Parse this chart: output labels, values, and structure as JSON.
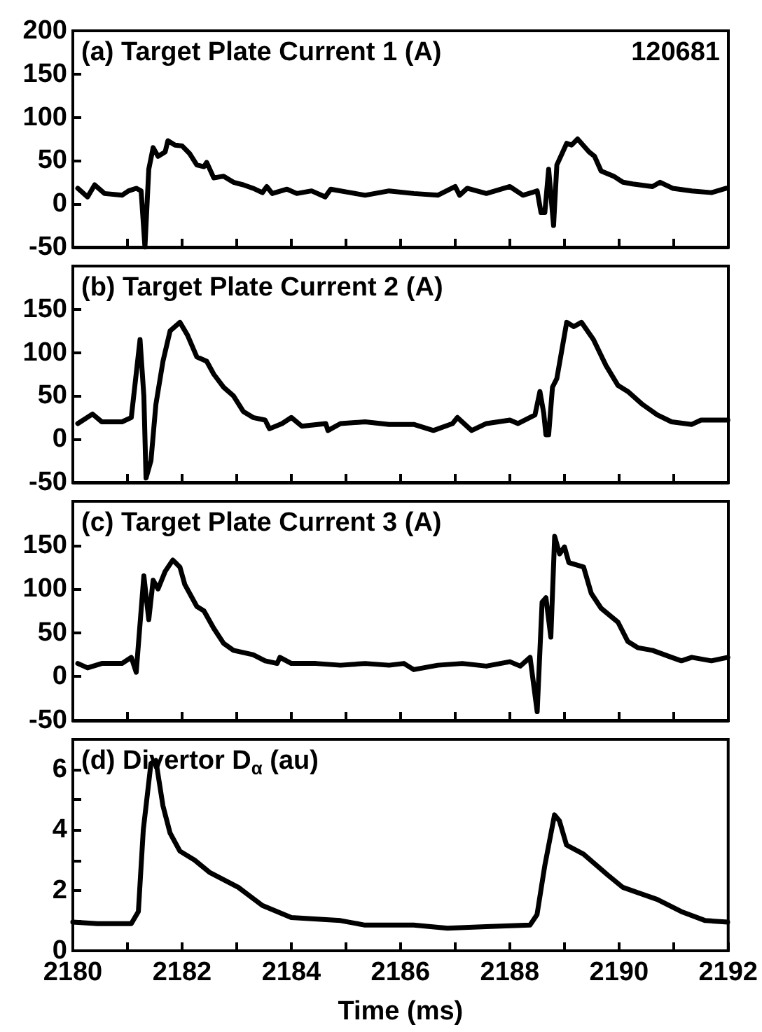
{
  "chart_data": [
    {
      "type": "line",
      "title": "(a) Target Plate Current 1 (A)",
      "annotations": [
        "120681"
      ],
      "xlim": [
        2180,
        2192
      ],
      "xticks": [
        2180,
        {
          "value": 2181,
          "label": null
        },
        2182,
        {
          "value": 2183,
          "label": null
        },
        2184,
        {
          "value": 2185,
          "label": null
        },
        2186,
        {
          "value": 2187,
          "label": null
        },
        2188,
        {
          "value": 2189,
          "label": null
        },
        2190,
        {
          "value": 2191,
          "label": null
        },
        2192
      ],
      "ylim": [
        -50,
        200
      ],
      "yticks": [
        -50,
        0,
        50,
        100,
        150,
        200
      ],
      "tick_labels": "y",
      "grid": false,
      "series": [
        {
          "color": "#000000",
          "x": [
            2180.09,
            2180.27,
            2180.4,
            2180.58,
            2180.9,
            2181.02,
            2181.16,
            2181.25,
            2181.32,
            2181.39,
            2181.47,
            2181.56,
            2181.69,
            2181.74,
            2181.87,
            2182.0,
            2182.14,
            2182.27,
            2182.4,
            2182.45,
            2182.58,
            2182.76,
            2182.94,
            2183.12,
            2183.3,
            2183.47,
            2183.55,
            2183.65,
            2183.92,
            2184.1,
            2184.37,
            2184.62,
            2184.72,
            2185.08,
            2185.35,
            2185.79,
            2186.24,
            2186.68,
            2187.0,
            2187.08,
            2187.22,
            2187.57,
            2188.0,
            2188.24,
            2188.5,
            2188.57,
            2188.64,
            2188.71,
            2188.8,
            2188.86,
            2189.04,
            2189.13,
            2189.24,
            2189.45,
            2189.55,
            2189.67,
            2189.9,
            2190.07,
            2190.25,
            2190.61,
            2190.75,
            2190.98,
            2191.33,
            2191.69,
            2191.96
          ],
          "values": [
            18,
            8,
            22,
            12,
            10,
            15,
            18,
            15,
            -50,
            40,
            65,
            55,
            60,
            73,
            68,
            67,
            58,
            45,
            43,
            48,
            30,
            32,
            25,
            22,
            18,
            13,
            20,
            12,
            17,
            12,
            15,
            8,
            17,
            13,
            10,
            15,
            12,
            10,
            20,
            10,
            18,
            12,
            20,
            10,
            15,
            -10,
            -10,
            40,
            -25,
            45,
            70,
            68,
            75,
            60,
            55,
            38,
            32,
            25,
            23,
            20,
            25,
            18,
            15,
            13,
            18
          ]
        }
      ]
    },
    {
      "type": "line",
      "title": "(b) Target Plate Current 2 (A)",
      "xlim": [
        2180,
        2192
      ],
      "xticks": [
        2180,
        {
          "value": 2181,
          "label": null
        },
        2182,
        {
          "value": 2183,
          "label": null
        },
        2184,
        {
          "value": 2185,
          "label": null
        },
        2186,
        {
          "value": 2187,
          "label": null
        },
        2188,
        {
          "value": 2189,
          "label": null
        },
        2190,
        {
          "value": 2191,
          "label": null
        },
        2192
      ],
      "ylim": [
        -50,
        200
      ],
      "yticks": [
        -50,
        0,
        50,
        100,
        150,
        {
          "value": 200,
          "label": null
        }
      ],
      "tick_labels": "y",
      "grid": false,
      "series": [
        {
          "color": "#000000",
          "x": [
            2180.09,
            2180.36,
            2180.53,
            2180.9,
            2181.07,
            2181.23,
            2181.3,
            2181.34,
            2181.43,
            2181.52,
            2181.65,
            2181.78,
            2181.96,
            2182.1,
            2182.27,
            2182.45,
            2182.58,
            2182.76,
            2182.94,
            2183.12,
            2183.3,
            2183.52,
            2183.6,
            2183.83,
            2184.0,
            2184.19,
            2184.63,
            2184.67,
            2184.9,
            2185.35,
            2185.79,
            2186.24,
            2186.6,
            2186.95,
            2187.04,
            2187.3,
            2187.57,
            2188.0,
            2188.15,
            2188.46,
            2188.55,
            2188.62,
            2188.66,
            2188.71,
            2188.78,
            2188.86,
            2189.04,
            2189.17,
            2189.31,
            2189.53,
            2189.76,
            2189.98,
            2190.16,
            2190.43,
            2190.7,
            2190.96,
            2191.33,
            2191.5,
            2191.99
          ],
          "values": [
            18,
            29,
            20,
            20,
            25,
            115,
            50,
            -45,
            -25,
            40,
            90,
            125,
            135,
            120,
            95,
            90,
            75,
            60,
            50,
            32,
            25,
            22,
            12,
            18,
            25,
            15,
            18,
            10,
            18,
            20,
            17,
            17,
            10,
            18,
            25,
            10,
            18,
            22,
            18,
            28,
            55,
            30,
            5,
            5,
            60,
            70,
            135,
            130,
            135,
            115,
            85,
            62,
            55,
            40,
            28,
            20,
            17,
            22,
            22
          ]
        }
      ]
    },
    {
      "type": "line",
      "title": "(c) Target Plate Current 3 (A)",
      "xlim": [
        2180,
        2192
      ],
      "xticks": [
        2180,
        {
          "value": 2181,
          "label": null
        },
        2182,
        {
          "value": 2183,
          "label": null
        },
        2184,
        {
          "value": 2185,
          "label": null
        },
        2186,
        {
          "value": 2187,
          "label": null
        },
        2188,
        {
          "value": 2189,
          "label": null
        },
        2190,
        {
          "value": 2191,
          "label": null
        },
        2192
      ],
      "ylim": [
        -50,
        200
      ],
      "yticks": [
        -50,
        0,
        50,
        100,
        150,
        {
          "value": 200,
          "label": null
        }
      ],
      "tick_labels": "y",
      "grid": false,
      "series": [
        {
          "color": "#000000",
          "x": [
            2180.09,
            2180.27,
            2180.53,
            2180.9,
            2181.07,
            2181.16,
            2181.3,
            2181.39,
            2181.47,
            2181.56,
            2181.69,
            2181.83,
            2181.96,
            2182.05,
            2182.27,
            2182.4,
            2182.58,
            2182.76,
            2182.94,
            2183.3,
            2183.52,
            2183.74,
            2183.79,
            2184.0,
            2184.45,
            2184.9,
            2185.35,
            2185.79,
            2186.06,
            2186.24,
            2186.68,
            2187.13,
            2187.57,
            2188.0,
            2188.19,
            2188.37,
            2188.5,
            2188.59,
            2188.66,
            2188.75,
            2188.82,
            2188.91,
            2189.0,
            2189.08,
            2189.35,
            2189.49,
            2189.67,
            2189.98,
            2190.16,
            2190.34,
            2190.61,
            2190.96,
            2191.14,
            2191.33,
            2191.69,
            2191.99
          ],
          "values": [
            15,
            10,
            15,
            15,
            22,
            5,
            115,
            65,
            110,
            100,
            120,
            133,
            125,
            105,
            80,
            75,
            55,
            38,
            30,
            25,
            18,
            15,
            22,
            15,
            15,
            13,
            15,
            13,
            15,
            8,
            13,
            15,
            12,
            17,
            12,
            22,
            -40,
            85,
            90,
            45,
            160,
            140,
            148,
            130,
            125,
            95,
            78,
            62,
            40,
            33,
            30,
            22,
            18,
            22,
            18,
            22
          ]
        }
      ]
    },
    {
      "type": "line",
      "title": "(d) Divertor D$_{α}$ (au)",
      "xlabel": "Time (ms)",
      "xlim": [
        2180,
        2192
      ],
      "xticks": [
        2180,
        {
          "value": 2181,
          "label": null
        },
        2182,
        {
          "value": 2183,
          "label": null
        },
        2184,
        {
          "value": 2185,
          "label": null
        },
        2186,
        {
          "value": 2187,
          "label": null
        },
        2188,
        {
          "value": 2189,
          "label": null
        },
        2190,
        {
          "value": 2191,
          "label": null
        },
        2192
      ],
      "ylim": [
        0,
        7
      ],
      "yticks": [
        0,
        {
          "value": 1,
          "label": null
        },
        2,
        {
          "value": 3,
          "label": null
        },
        4,
        {
          "value": 5,
          "label": null
        },
        6,
        {
          "value": 7,
          "label": null
        }
      ],
      "grid": false,
      "series": [
        {
          "color": "#000000",
          "x": [
            2180.0,
            2180.45,
            2181.07,
            2181.2,
            2181.29,
            2181.43,
            2181.52,
            2181.65,
            2181.78,
            2181.96,
            2182.23,
            2182.5,
            2183.03,
            2183.47,
            2184.0,
            2184.9,
            2185.35,
            2186.24,
            2186.86,
            2187.57,
            2188.37,
            2188.5,
            2188.64,
            2188.82,
            2188.91,
            2189.04,
            2189.35,
            2189.8,
            2190.07,
            2190.7,
            2191.14,
            2191.58,
            2191.99
          ],
          "values": [
            0.95,
            0.9,
            0.9,
            1.3,
            4.0,
            6.2,
            6.3,
            4.8,
            3.9,
            3.3,
            3.0,
            2.6,
            2.1,
            1.5,
            1.1,
            1.0,
            0.85,
            0.85,
            0.75,
            0.8,
            0.85,
            1.2,
            2.8,
            4.5,
            4.3,
            3.5,
            3.2,
            2.5,
            2.1,
            1.7,
            1.3,
            1.0,
            0.95
          ]
        }
      ]
    }
  ]
}
